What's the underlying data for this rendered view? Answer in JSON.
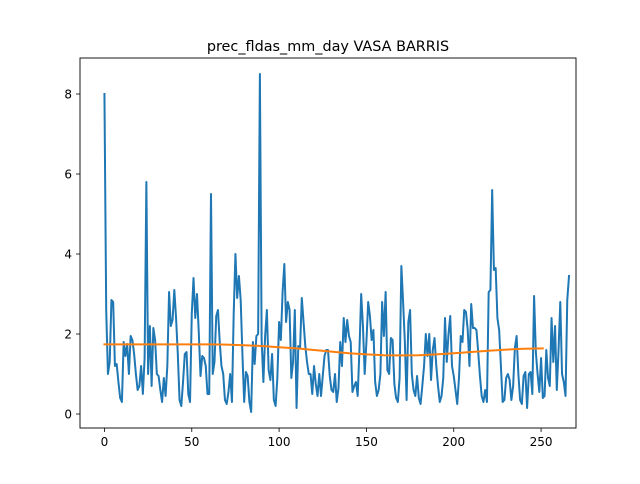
{
  "chart_data": {
    "type": "line",
    "title": "prec_fldas_mm_day VASA BARRIS",
    "xlabel": "",
    "ylabel": "",
    "xlim": [
      -14,
      270
    ],
    "ylim": [
      -0.35,
      8.9
    ],
    "x_ticks": [
      0,
      50,
      100,
      150,
      200,
      250
    ],
    "y_ticks": [
      0,
      2,
      4,
      6,
      8
    ],
    "grid": false,
    "series": [
      {
        "color": "#1f77b4",
        "values": [
          8.0,
          2.6,
          1.0,
          1.3,
          2.85,
          2.8,
          1.2,
          1.25,
          0.8,
          0.4,
          0.3,
          1.8,
          1.45,
          1.75,
          1.0,
          1.95,
          1.85,
          1.5,
          1.0,
          0.6,
          0.7,
          1.2,
          0.5,
          1.4,
          5.8,
          1.0,
          2.2,
          0.7,
          2.15,
          1.85,
          1.0,
          0.95,
          0.6,
          0.3,
          0.9,
          0.45,
          1.2,
          3.05,
          2.2,
          2.35,
          3.1,
          2.4,
          1.5,
          0.35,
          0.2,
          0.8,
          1.5,
          1.55,
          0.5,
          0.3,
          2.5,
          3.4,
          2.4,
          3.0,
          2.05,
          0.95,
          1.45,
          1.4,
          1.2,
          0.5,
          0.5,
          5.5,
          1.0,
          1.3,
          2.45,
          2.6,
          1.8,
          1.2,
          1.0,
          0.35,
          0.25,
          0.55,
          1.0,
          0.3,
          2.5,
          4.0,
          2.9,
          3.45,
          2.85,
          1.5,
          0.3,
          1.05,
          0.95,
          0.3,
          0.05,
          1.8,
          1.25,
          1.95,
          2.0,
          8.5,
          1.85,
          0.8,
          1.95,
          2.6,
          1.1,
          0.85,
          1.5,
          0.35,
          0.2,
          0.9,
          2.3,
          1.85,
          3.05,
          3.75,
          2.3,
          2.8,
          2.6,
          0.9,
          1.3,
          2.6,
          0.15,
          1.7,
          1.65,
          2.9,
          2.3,
          1.7,
          1.3,
          1.0,
          1.0,
          0.5,
          1.2,
          0.75,
          0.45,
          1.0,
          0.45,
          0.95,
          1.45,
          1.6,
          1.6,
          0.95,
          0.6,
          0.55,
          1.0,
          0.3,
          0.65,
          1.8,
          1.2,
          2.4,
          1.8,
          2.35,
          1.95,
          1.8,
          0.55,
          0.7,
          0.8,
          0.45,
          1.6,
          3.0,
          2.2,
          1.0,
          1.8,
          2.8,
          2.45,
          1.85,
          2.1,
          0.8,
          0.45,
          0.6,
          1.0,
          2.8,
          1.95,
          3.05,
          1.1,
          1.0,
          1.9,
          1.85,
          0.75,
          0.4,
          0.3,
          0.9,
          3.7,
          2.8,
          1.8,
          0.35,
          2.3,
          2.6,
          1.0,
          0.6,
          0.45,
          0.95,
          0.4,
          0.25,
          0.7,
          1.2,
          2.0,
          1.45,
          2.0,
          0.85,
          1.6,
          1.9,
          1.2,
          0.7,
          0.3,
          0.45,
          0.9,
          2.4,
          1.3,
          2.0,
          2.45,
          1.2,
          0.95,
          0.6,
          0.25,
          0.9,
          1.95,
          1.8,
          2.6,
          2.55,
          2.1,
          1.2,
          2.75,
          2.15,
          2.15,
          2.1,
          1.55,
          0.95,
          0.45,
          0.3,
          0.6,
          0.3,
          3.05,
          3.1,
          5.6,
          3.6,
          3.65,
          2.4,
          2.1,
          1.2,
          0.3,
          0.35,
          0.9,
          1.0,
          0.85,
          0.35,
          0.7,
          1.65,
          1.95,
          1.0,
          0.35,
          0.25,
          0.95,
          1.05,
          0.15,
          1.0,
          1.05,
          0.5,
          2.95,
          1.55,
          1.0,
          0.55,
          1.4,
          0.4,
          0.45,
          1.6,
          0.9,
          0.7,
          2.4,
          1.3,
          2.2,
          0.6,
          1.6,
          2.8,
          1.0,
          0.8,
          0.45,
          2.85,
          3.45
        ]
      },
      {
        "color": "#ff7f0e",
        "x": [
          0,
          20,
          40,
          60,
          70,
          80,
          90,
          100,
          110,
          120,
          130,
          140,
          150,
          160,
          170,
          180,
          190,
          200,
          210,
          220,
          230,
          240,
          251
        ],
        "values": [
          1.74,
          1.74,
          1.74,
          1.74,
          1.735,
          1.72,
          1.7,
          1.67,
          1.64,
          1.6,
          1.56,
          1.52,
          1.49,
          1.47,
          1.465,
          1.47,
          1.49,
          1.52,
          1.55,
          1.58,
          1.61,
          1.63,
          1.64
        ]
      }
    ]
  }
}
